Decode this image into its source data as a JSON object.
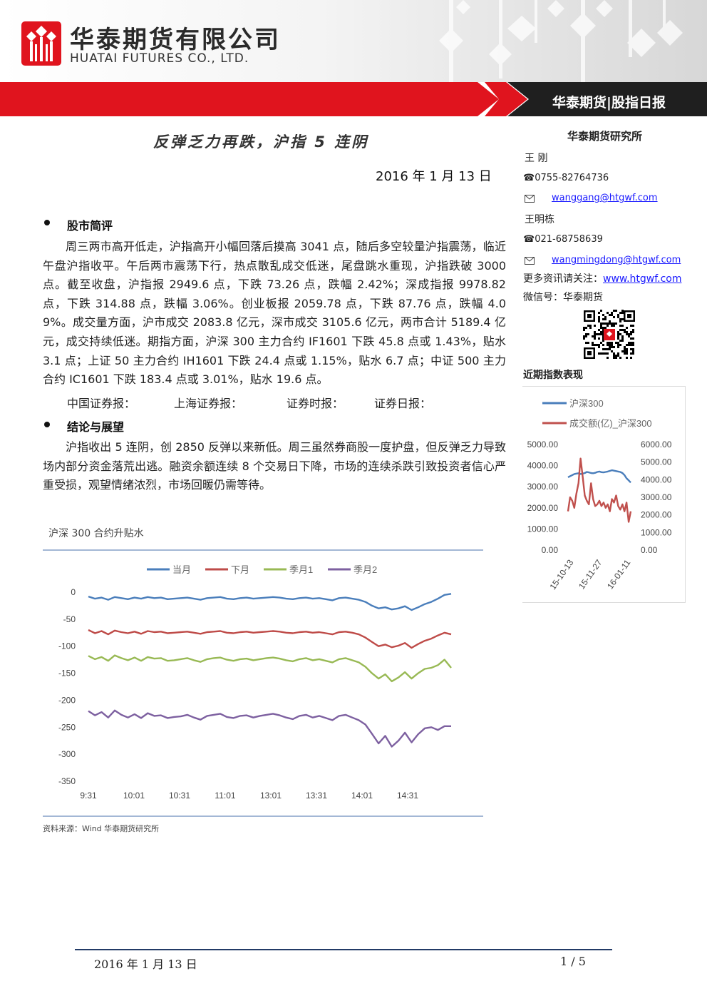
{
  "header": {
    "company_cn": "华泰期货有限公司",
    "company_en": "HUATAI FUTURES CO., LTD.",
    "report_name": "华泰期货|股指日报",
    "brand_color": "#e0141e"
  },
  "article": {
    "headline": "反弹乏力再跌，沪指 5 连阴",
    "date": "2016 年 1 月 13 日",
    "section1": {
      "title": "股市简评",
      "body": "周三两市高开低走，沪指高开小幅回落后摸高 3041 点，随后多空较量沪指震荡，临近午盘沪指收平。午后两市震荡下行，热点散乱成交低迷，尾盘跳水重现，沪指跌破 3000 点。截至收盘，沪指报 2949.6 点，下跌 73.26 点，跌幅 2.42%；深成指报 9978.82 点，下跌 314.88 点，跌幅 3.06%。创业板报 2059.78 点，下跌 87.76 点，跌幅 4.09%。成交量方面，沪市成交 2083.8 亿元，深市成交 3105.6 亿元，两市合计 5189.4 亿元，成交持续低迷。期指方面，沪深 300 主力合约 IF1601 下跌 45.8 点或 1.43%，贴水 3.1 点；上证 50 主力合约 IH1601 下跌 24.4 点或 1.15%，贴水 6.7 点；中证 500 主力合约 IC1601 下跌 183.4 点或 3.01%，贴水 19.6 点。",
      "media": [
        "中国证券报：",
        "上海证券报：",
        "证券时报：",
        "证券日报："
      ]
    },
    "section2": {
      "title": "结论与展望",
      "body": "沪指收出 5 连阴，创 2850 反弹以来新低。周三虽然券商股一度护盘，但反弹乏力导致场内部分资金落荒出逃。融资余额连续 8 个交易日下降，市场的连续杀跌引致投资者信心严重受损，观望情绪浓烈，市场回暖仍需等待。"
    },
    "source": "资料来源：Wind  华泰期货研究所"
  },
  "sidebar": {
    "institute": "华泰期货研究所",
    "analyst1": {
      "name": "王  刚",
      "phone": "☎0755-82764736",
      "email": "wanggang@htgwf.com"
    },
    "analyst2": {
      "name": "王明栋",
      "phone": "☎021-68758639",
      "email": "wangmingdong@htgwf.com"
    },
    "more_label": "更多资讯请关注：",
    "website": "www.htgwf.com",
    "wechat": "微信号：华泰期货",
    "recent_title": "近期指数表现"
  },
  "footer": {
    "date": "2016 年 1 月 13 日",
    "page": "1 / 5"
  },
  "chart_data": [
    {
      "type": "line",
      "title": "沪深 300 合约升贴水",
      "x_ticks": [
        "9:31",
        "10:01",
        "10:31",
        "11:01",
        "13:01",
        "13:31",
        "14:01",
        "14:31"
      ],
      "ylim": [
        -350,
        0
      ],
      "y_ticks": [
        0,
        -50,
        -100,
        -150,
        -200,
        -250,
        -300,
        -350
      ],
      "legend_position": "top",
      "series": [
        {
          "name": "当月",
          "color": "#4a7ebb",
          "values": [
            -8,
            -12,
            -10,
            -14,
            -9,
            -11,
            -13,
            -10,
            -12,
            -9,
            -11,
            -10,
            -13,
            -12,
            -11,
            -10,
            -12,
            -14,
            -11,
            -10,
            -9,
            -12,
            -13,
            -11,
            -10,
            -12,
            -11,
            -10,
            -9,
            -10,
            -12,
            -13,
            -11,
            -10,
            -12,
            -11,
            -13,
            -15,
            -11,
            -10,
            -12,
            -14,
            -18,
            -25,
            -30,
            -28,
            -32,
            -30,
            -26,
            -33,
            -28,
            -22,
            -18,
            -12,
            -5,
            -3
          ]
        },
        {
          "name": "下月",
          "color": "#be4b48",
          "values": [
            -70,
            -76,
            -72,
            -78,
            -71,
            -74,
            -76,
            -73,
            -77,
            -72,
            -74,
            -73,
            -76,
            -75,
            -74,
            -73,
            -75,
            -77,
            -74,
            -73,
            -72,
            -75,
            -76,
            -74,
            -73,
            -75,
            -74,
            -73,
            -72,
            -73,
            -75,
            -76,
            -74,
            -73,
            -75,
            -74,
            -76,
            -78,
            -74,
            -73,
            -75,
            -78,
            -84,
            -92,
            -100,
            -97,
            -102,
            -99,
            -94,
            -103,
            -96,
            -90,
            -86,
            -80,
            -75,
            -78
          ]
        },
        {
          "name": "季月1",
          "color": "#98b954",
          "values": [
            -118,
            -124,
            -120,
            -127,
            -117,
            -122,
            -126,
            -121,
            -127,
            -120,
            -123,
            -122,
            -127,
            -126,
            -124,
            -122,
            -126,
            -129,
            -124,
            -122,
            -121,
            -125,
            -127,
            -124,
            -123,
            -126,
            -124,
            -122,
            -121,
            -123,
            -126,
            -128,
            -124,
            -122,
            -126,
            -124,
            -127,
            -130,
            -124,
            -122,
            -126,
            -130,
            -138,
            -150,
            -160,
            -152,
            -165,
            -158,
            -148,
            -160,
            -150,
            -142,
            -140,
            -135,
            -125,
            -140
          ]
        },
        {
          "name": "季月2",
          "color": "#7d60a0",
          "values": [
            -220,
            -228,
            -222,
            -232,
            -219,
            -227,
            -232,
            -226,
            -233,
            -224,
            -229,
            -228,
            -233,
            -231,
            -230,
            -227,
            -232,
            -236,
            -229,
            -227,
            -225,
            -231,
            -233,
            -229,
            -228,
            -232,
            -229,
            -227,
            -225,
            -228,
            -232,
            -235,
            -229,
            -227,
            -232,
            -229,
            -233,
            -237,
            -229,
            -227,
            -232,
            -237,
            -245,
            -262,
            -280,
            -266,
            -286,
            -275,
            -260,
            -278,
            -263,
            -252,
            -250,
            -255,
            -248,
            -248
          ]
        }
      ]
    },
    {
      "type": "line",
      "title": "近期指数表现",
      "x_ticks": [
        "15-10-13",
        "15-11-27",
        "16-01-11"
      ],
      "left_axis": {
        "ticks": [
          "5000.00",
          "4000.00",
          "3000.00",
          "2000.00",
          "1000.00",
          "0.00"
        ],
        "ylim": [
          0,
          5000
        ]
      },
      "right_axis": {
        "ticks": [
          "6000.00",
          "5000.00",
          "4000.00",
          "3000.00",
          "2000.00",
          "1000.00",
          "0.00"
        ],
        "ylim": [
          0,
          6000
        ]
      },
      "legend_position": "top",
      "series": [
        {
          "name": "沪深300",
          "color": "#4a7ebb",
          "axis": "left",
          "values": [
            3450,
            3500,
            3550,
            3600,
            3620,
            3640,
            3600,
            3620,
            3650,
            3700,
            3680,
            3650,
            3640,
            3660,
            3700,
            3720,
            3690,
            3680,
            3700,
            3720,
            3750,
            3780,
            3760,
            3740,
            3720,
            3700,
            3650,
            3550,
            3400,
            3300,
            3200
          ]
        },
        {
          "name": "成交额(亿)_沪深300",
          "color": "#c0504d",
          "axis": "right",
          "values": [
            2200,
            3000,
            2800,
            2400,
            3200,
            3800,
            5200,
            4200,
            3100,
            2800,
            2600,
            3800,
            2900,
            2500,
            2600,
            2800,
            2500,
            2700,
            2400,
            2600,
            2200,
            2900,
            2700,
            3100,
            2500,
            2300,
            2600,
            2200,
            2700,
            1600,
            2200
          ]
        }
      ]
    }
  ]
}
